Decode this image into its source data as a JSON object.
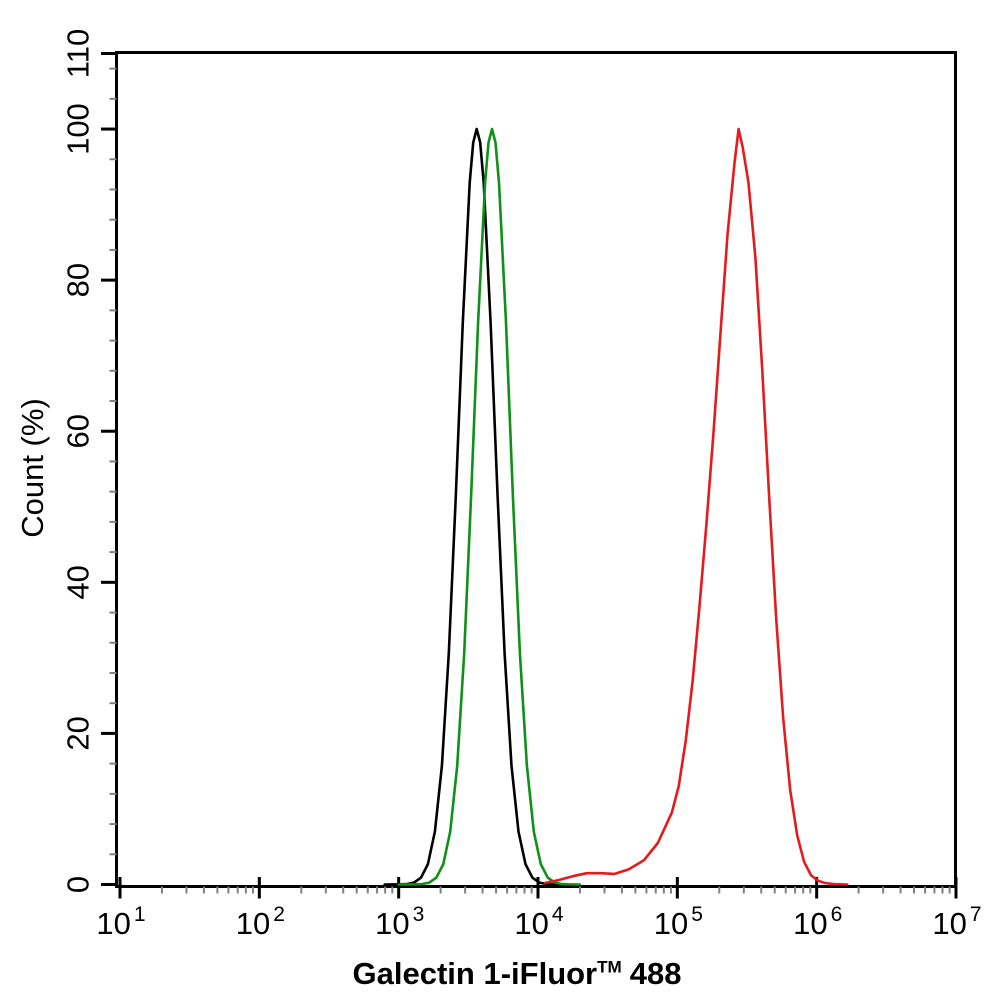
{
  "figure": {
    "background": "#ffffff"
  },
  "chart_data": {
    "type": "line",
    "title": "",
    "xlabel": "Galectin 1-iFluor™ 488",
    "xlabel_parts": {
      "base": "Galectin 1-iFluor",
      "superscript": "TM",
      "suffix": "488"
    },
    "ylabel": "Count (%)",
    "x_scale": "log10",
    "grid": false,
    "legend": "none",
    "axis_color": "#000000",
    "minor_tick_color": "#808080",
    "x_axis": {
      "tick_label_base": "10",
      "tick_exponents": [
        1,
        2,
        3,
        4,
        5,
        6,
        7
      ],
      "minor_tick_digits": [
        2,
        3,
        4,
        5,
        6,
        7,
        8,
        9
      ],
      "lim_exponents": [
        1,
        7
      ]
    },
    "y_axis": {
      "ticks": [
        0,
        20,
        40,
        60,
        80,
        100,
        110
      ],
      "minor_step": 4,
      "lim": [
        0,
        110
      ]
    },
    "series": [
      {
        "name": "black",
        "color": "#000000",
        "peak_x": 3600,
        "peak_y": 100,
        "points": [
          [
            2.9,
            0
          ],
          [
            3.01,
            0.02
          ],
          [
            3.06,
            0.06
          ],
          [
            3.11,
            0.25
          ],
          [
            3.16,
            0.9
          ],
          [
            3.21,
            2.7
          ],
          [
            3.26,
            7
          ],
          [
            3.31,
            15.7
          ],
          [
            3.36,
            30.6
          ],
          [
            3.41,
            51.4
          ],
          [
            3.46,
            74.4
          ],
          [
            3.51,
            92.9
          ],
          [
            3.535,
            98.2
          ],
          [
            3.56,
            100
          ],
          [
            3.585,
            98.2
          ],
          [
            3.61,
            92.9
          ],
          [
            3.66,
            74.4
          ],
          [
            3.71,
            51.4
          ],
          [
            3.76,
            30.6
          ],
          [
            3.81,
            15.7
          ],
          [
            3.86,
            7
          ],
          [
            3.91,
            2.7
          ],
          [
            3.96,
            0.9
          ],
          [
            4.01,
            0.25
          ],
          [
            4.06,
            0.06
          ],
          [
            4.11,
            0.02
          ],
          [
            4.2,
            0
          ]
        ]
      },
      {
        "name": "green",
        "color": "#0e9116",
        "peak_x": 4700,
        "peak_y": 100,
        "points": [
          [
            3.0,
            0
          ],
          [
            3.12,
            0.02
          ],
          [
            3.17,
            0.06
          ],
          [
            3.22,
            0.25
          ],
          [
            3.27,
            0.9
          ],
          [
            3.32,
            2.7
          ],
          [
            3.37,
            7
          ],
          [
            3.42,
            15.7
          ],
          [
            3.47,
            30.6
          ],
          [
            3.52,
            51.4
          ],
          [
            3.57,
            74.4
          ],
          [
            3.62,
            92.9
          ],
          [
            3.645,
            98.2
          ],
          [
            3.67,
            100
          ],
          [
            3.695,
            98.2
          ],
          [
            3.72,
            92.9
          ],
          [
            3.77,
            74.4
          ],
          [
            3.82,
            51.4
          ],
          [
            3.87,
            30.6
          ],
          [
            3.92,
            15.7
          ],
          [
            3.97,
            7
          ],
          [
            4.02,
            2.7
          ],
          [
            4.07,
            0.9
          ],
          [
            4.12,
            0.25
          ],
          [
            4.17,
            0.06
          ],
          [
            4.22,
            0.02
          ],
          [
            4.3,
            0
          ]
        ]
      },
      {
        "name": "red",
        "color": "#e41a1c",
        "peak_x": 275000,
        "peak_y": 100,
        "points": [
          [
            4.05,
            0.2
          ],
          [
            4.15,
            0.6
          ],
          [
            4.25,
            1.1
          ],
          [
            4.35,
            1.5
          ],
          [
            4.45,
            1.5
          ],
          [
            4.55,
            1.4
          ],
          [
            4.65,
            2.0
          ],
          [
            4.76,
            3.2
          ],
          [
            4.86,
            5.5
          ],
          [
            4.96,
            9.5
          ],
          [
            5.01,
            13
          ],
          [
            5.06,
            19
          ],
          [
            5.11,
            27
          ],
          [
            5.16,
            37
          ],
          [
            5.21,
            48
          ],
          [
            5.26,
            60
          ],
          [
            5.31,
            73
          ],
          [
            5.36,
            86
          ],
          [
            5.41,
            95.5
          ],
          [
            5.44,
            100
          ],
          [
            5.47,
            97.5
          ],
          [
            5.51,
            93
          ],
          [
            5.56,
            83
          ],
          [
            5.61,
            68
          ],
          [
            5.66,
            51
          ],
          [
            5.71,
            35
          ],
          [
            5.76,
            22
          ],
          [
            5.81,
            12.5
          ],
          [
            5.86,
            6.5
          ],
          [
            5.91,
            3.0
          ],
          [
            5.96,
            1.2
          ],
          [
            6.01,
            0.5
          ],
          [
            6.06,
            0.2
          ],
          [
            6.12,
            0.05
          ],
          [
            6.22,
            0
          ]
        ]
      }
    ]
  }
}
